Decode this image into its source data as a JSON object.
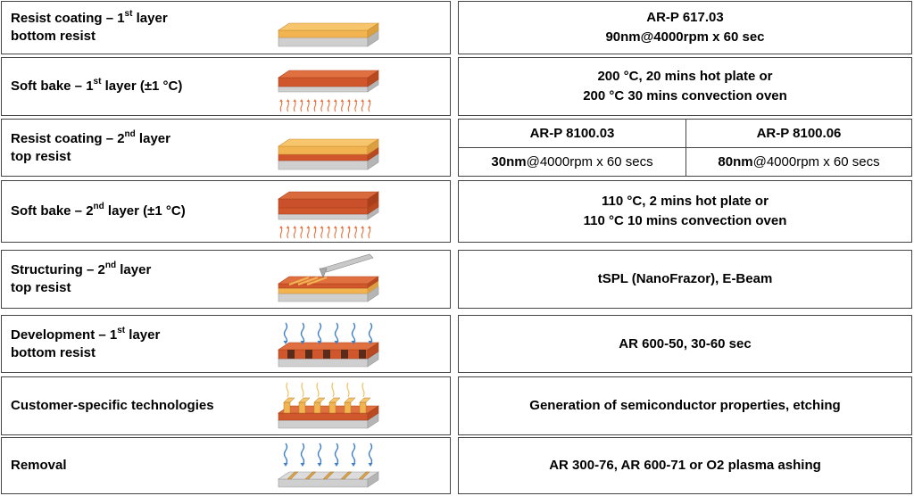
{
  "steps": [
    {
      "name_line1": "Resist coating – 1",
      "name_line1_sup": "st",
      "name_line1_tail": " layer",
      "name_line2": "bottom resist",
      "param_line1": "AR-P 617.03",
      "param_line2": "90nm@4000rpm x 60 sec"
    },
    {
      "name_pre": "Soft bake – 1",
      "name_sup": "st",
      "name_tail": " layer (±1 °C)",
      "param_line1": "200 °C, 20 mins hot plate or",
      "param_line2": "200 °C 30 mins convection oven"
    },
    {
      "name_line1": "Resist coating – 2",
      "name_line1_sup": "nd",
      "name_line1_tail": " layer",
      "name_line2": "top resist",
      "col1_header": "AR-P 8100.03",
      "col2_header": "AR-P 8100.06",
      "col1_thickness": "30nm",
      "col1_rest": "@4000rpm x 60 secs",
      "col2_thickness": "80nm",
      "col2_rest": "@4000rpm x 60 secs"
    },
    {
      "name_pre": "Soft bake – 2",
      "name_sup": "nd",
      "name_tail": " layer (±1 °C)",
      "param_line1": "110 °C, 2 mins hot plate or",
      "param_line2": "110 °C 10 mins convection oven"
    },
    {
      "name_line1": "Structuring – 2",
      "name_line1_sup": "nd",
      "name_line1_tail": " layer",
      "name_line2": "top resist",
      "param": "tSPL (NanoFrazor), E-Beam"
    },
    {
      "name_line1": "Development – 1",
      "name_line1_sup": "st",
      "name_line1_tail": " layer",
      "name_line2": "bottom resist",
      "param": "AR 600-50, 30-60 sec"
    },
    {
      "name": "Customer-specific technologies",
      "param": "Generation of semiconductor properties, etching"
    },
    {
      "name": "Removal",
      "param": "AR 300-76, AR 600-71 or O2 plasma ashing"
    }
  ],
  "colors": {
    "substrate": "#cfcfcf",
    "bottom_resist": "#f2b451",
    "top_resist": "#d0572c",
    "heat_arrow": "#e8703a",
    "solvent_arrow": "#3f7fc9",
    "border": "#444444"
  }
}
